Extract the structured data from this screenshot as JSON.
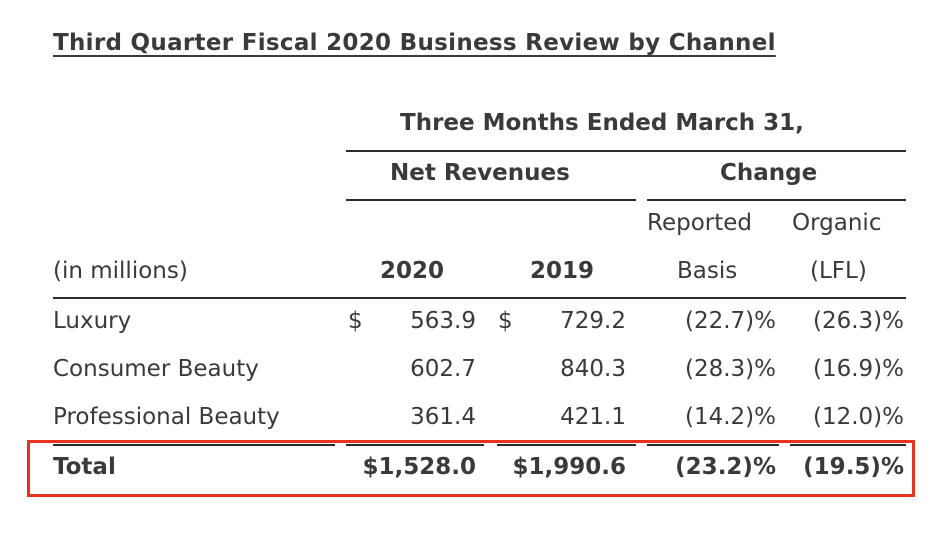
{
  "title": "Third Quarter Fiscal 2020 Business Review by Channel",
  "header": {
    "period": "Three Months Ended March 31,",
    "net_revenues": "Net Revenues",
    "change": "Change",
    "reported_line1": "Reported",
    "reported_line2": "Basis",
    "organic_line1": "Organic",
    "organic_line2": "(LFL)",
    "units": "(in millions)",
    "year_2020": "2020",
    "year_2019": "2019"
  },
  "rows": [
    {
      "label": "Luxury",
      "cur1": "$",
      "v2020": "563.9",
      "cur2": "$",
      "v2019": "729.2",
      "reported": "(22.7)%",
      "organic": "(26.3)%"
    },
    {
      "label": "Consumer Beauty",
      "cur1": "",
      "v2020": "602.7",
      "cur2": "",
      "v2019": "840.3",
      "reported": "(28.3)%",
      "organic": "(16.9)%"
    },
    {
      "label": "Professional Beauty",
      "cur1": "",
      "v2020": "361.4",
      "cur2": "",
      "v2019": "421.1",
      "reported": "(14.2)%",
      "organic": "(12.0)%"
    }
  ],
  "total": {
    "label": "Total",
    "v2020": "$1,528.0",
    "v2019": "$1,990.6",
    "reported": "(23.2)%",
    "organic": "(19.5)%"
  },
  "highlight_color": "#e8311f"
}
